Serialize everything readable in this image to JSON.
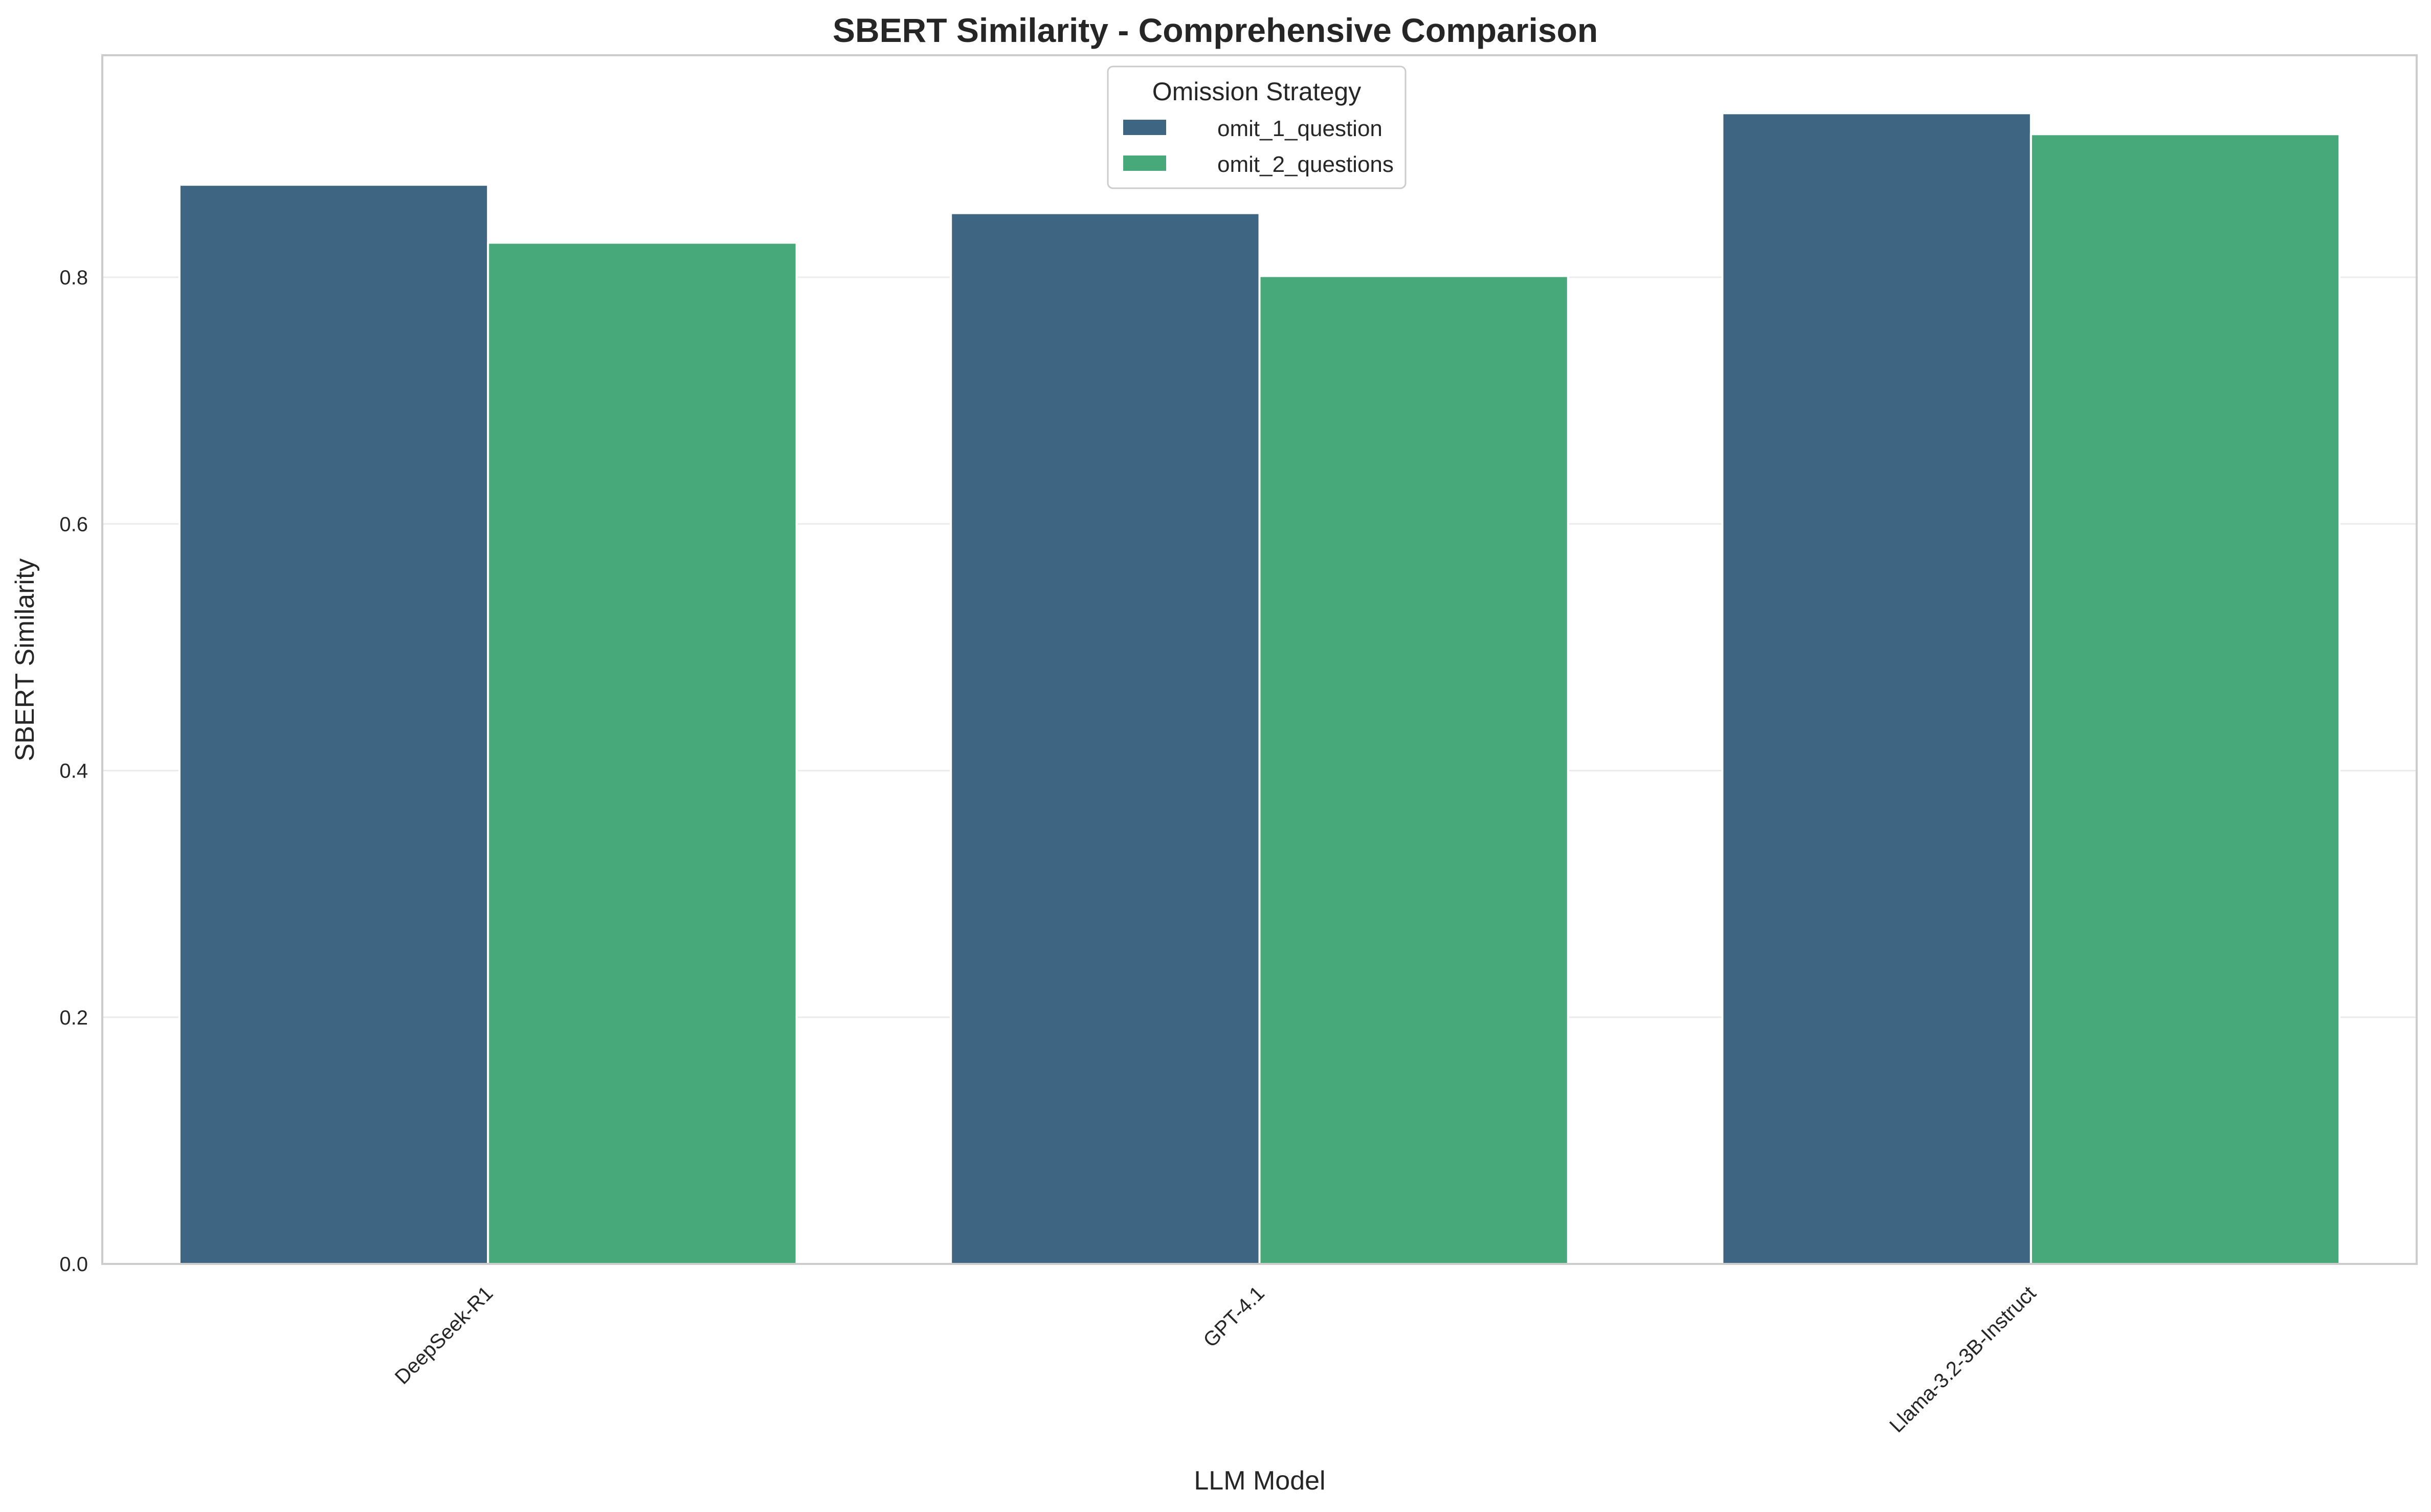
{
  "chart_data": {
    "type": "bar",
    "title": "SBERT Similarity - Comprehensive Comparison",
    "xlabel": "LLM Model",
    "ylabel": "SBERT Similarity",
    "categories": [
      "DeepSeek-R1",
      "GPT-4.1",
      "Llama-3.2-3B-Instruct"
    ],
    "series": [
      {
        "name": "omit_1_question",
        "values": [
          0.875,
          0.852,
          0.933
        ],
        "color": "#3e6682"
      },
      {
        "name": "omit_2_questions",
        "values": [
          0.828,
          0.801,
          0.916
        ],
        "color": "#47a87a"
      }
    ],
    "ylim": [
      0,
      0.98
    ],
    "yticks": [
      0.0,
      0.2,
      0.4,
      0.6,
      0.8
    ],
    "ytick_labels": [
      "0.0",
      "0.2",
      "0.4",
      "0.6",
      "0.8"
    ],
    "grid": "horizontal",
    "legend": {
      "title": "Omission Strategy",
      "placement": "upper center"
    }
  }
}
